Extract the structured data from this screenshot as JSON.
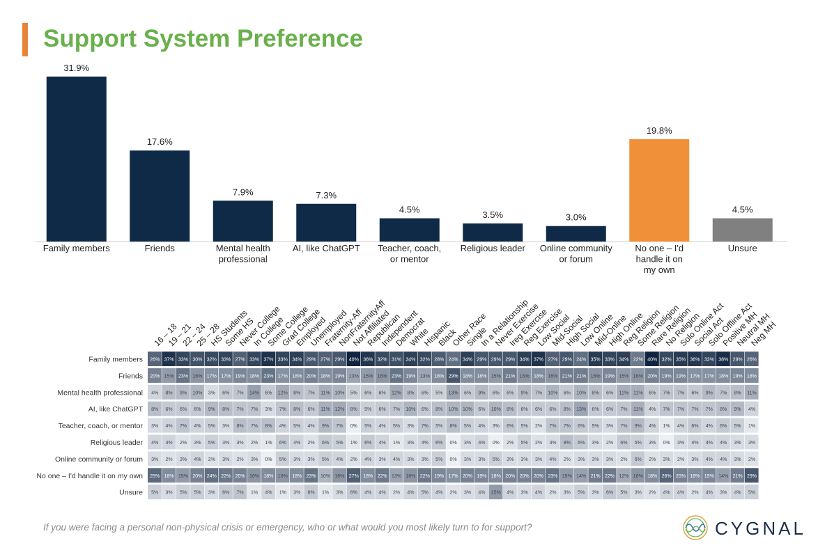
{
  "title": "Support System Preference",
  "question": "If you were facing a personal non-physical crisis or emergency, who or what would you most likely turn to for support?",
  "brand": "CYGNAL",
  "colors": {
    "accent": "#e8843a",
    "title": "#6ab04c",
    "bar": "#0f2a47",
    "highlight": "#f0913a",
    "unsure": "#808080"
  },
  "chart_data": [
    {
      "type": "bar",
      "categories": [
        "Family members",
        "Friends",
        "Mental health professional",
        "AI, like ChatGPT",
        "Teacher, coach, or mentor",
        "Religious leader",
        "Online community or forum",
        "No one – I'd handle it on my own",
        "Unsure"
      ],
      "values": [
        31.9,
        17.6,
        7.9,
        7.3,
        4.5,
        3.5,
        3.0,
        19.8,
        4.5
      ],
      "data_labels": [
        "31.9%",
        "17.6%",
        "7.9%",
        "7.3%",
        "4.5%",
        "3.5%",
        "3.0%",
        "19.8%",
        "4.5%"
      ],
      "bar_colors": [
        "#0f2a47",
        "#0f2a47",
        "#0f2a47",
        "#0f2a47",
        "#0f2a47",
        "#0f2a47",
        "#0f2a47",
        "#f0913a",
        "#808080"
      ],
      "ylim": [
        0,
        33
      ]
    },
    {
      "type": "heatmap",
      "columns": [
        "16 – 18",
        "19 – 21",
        "22 – 24",
        "25 – 28",
        "HS Students",
        "Some HS",
        "Never College",
        "In College",
        "Some College",
        "Grad College",
        "Employed",
        "Unemployed",
        "Fraternity-Aff",
        "NonFraternityAff",
        "Not Affiliated",
        "Republican",
        "Independent",
        "Democrat",
        "White",
        "Hispanic",
        "Black",
        "Other Race",
        "Single",
        "In a Relationship",
        "Never Exercise",
        "Ireg Exercise",
        "Reg Exercise",
        "Low Social",
        "Mid-Social",
        "High Social",
        "Low Online",
        "Mid-Online",
        "High Online",
        "Reg Religion",
        "Some Religion",
        "Rare Religion",
        "No Religion",
        "Solo Online Act",
        "Social Act",
        "Solo Offline Act",
        "Positive MH",
        "Neutral MH",
        "Neg MH"
      ],
      "rows": [
        "Family members",
        "Friends",
        "Mental health professional",
        "AI, like ChatGPT",
        "Teacher, coach, or mentor",
        "Religious leader",
        "Online community or forum",
        "No one – I'd handle it on my own",
        "Unsure"
      ],
      "values": [
        [
          26,
          37,
          33,
          30,
          32,
          33,
          27,
          33,
          37,
          33,
          34,
          29,
          27,
          29,
          40,
          36,
          32,
          31,
          34,
          32,
          28,
          24,
          34,
          29,
          29,
          29,
          34,
          37,
          27,
          29,
          24,
          35,
          33,
          34,
          22,
          40,
          32,
          35,
          36,
          33,
          38,
          29,
          26
        ],
        [
          20,
          15,
          23,
          16,
          17,
          17,
          19,
          18,
          23,
          17,
          18,
          20,
          18,
          19,
          13,
          15,
          16,
          23,
          19,
          13,
          18,
          29,
          18,
          18,
          15,
          21,
          16,
          18,
          16,
          21,
          21,
          16,
          19,
          15,
          16,
          20,
          19,
          19,
          17,
          17,
          18,
          19,
          18
        ],
        [
          4,
          8,
          9,
          10,
          3,
          6,
          7,
          14,
          6,
          12,
          8,
          7,
          11,
          10,
          5,
          6,
          6,
          12,
          8,
          6,
          5,
          13,
          6,
          9,
          6,
          6,
          9,
          7,
          10,
          6,
          10,
          8,
          6,
          11,
          11,
          6,
          7,
          7,
          6,
          9,
          7,
          8,
          11
        ],
        [
          8,
          6,
          6,
          6,
          9,
          8,
          7,
          7,
          3,
          7,
          8,
          6,
          11,
          12,
          8,
          5,
          6,
          7,
          10,
          6,
          8,
          10,
          10,
          6,
          10,
          8,
          6,
          6,
          6,
          8,
          13,
          6,
          6,
          7,
          11,
          4,
          7,
          7,
          7,
          7,
          8,
          9,
          4
        ],
        [
          3,
          4,
          7,
          4,
          5,
          3,
          8,
          7,
          8,
          4,
          5,
          4,
          9,
          7,
          0,
          5,
          4,
          5,
          3,
          7,
          5,
          8,
          5,
          4,
          3,
          6,
          5,
          2,
          7,
          7,
          6,
          5,
          3,
          7,
          9,
          4,
          1,
          4,
          6,
          4,
          6,
          5,
          1
        ],
        [
          4,
          4,
          2,
          3,
          5,
          3,
          3,
          2,
          1,
          6,
          4,
          2,
          6,
          5,
          1,
          6,
          4,
          1,
          3,
          4,
          6,
          0,
          3,
          4,
          0,
          2,
          5,
          2,
          3,
          8,
          6,
          3,
          2,
          6,
          5,
          3,
          0,
          3,
          4,
          4,
          4,
          3,
          3
        ],
        [
          3,
          2,
          3,
          4,
          2,
          3,
          2,
          3,
          0,
          5,
          3,
          3,
          5,
          4,
          2,
          4,
          3,
          4,
          3,
          3,
          5,
          0,
          3,
          3,
          5,
          3,
          3,
          3,
          4,
          2,
          3,
          3,
          3,
          2,
          6,
          2,
          3,
          2,
          3,
          4,
          4,
          3,
          2
        ],
        [
          25,
          18,
          15,
          20,
          24,
          22,
          20,
          16,
          18,
          16,
          18,
          23,
          10,
          16,
          27,
          18,
          22,
          13,
          16,
          22,
          19,
          17,
          20,
          19,
          18,
          20,
          20,
          20,
          23,
          15,
          14,
          21,
          22,
          12,
          16,
          18,
          26,
          20,
          18,
          19,
          14,
          21,
          29
        ],
        [
          5,
          3,
          5,
          5,
          3,
          6,
          7,
          1,
          4,
          1,
          3,
          6,
          1,
          3,
          6,
          4,
          4,
          2,
          4,
          5,
          4,
          2,
          3,
          4,
          15,
          4,
          3,
          4,
          2,
          3,
          5,
          3,
          6,
          5,
          3,
          2,
          4,
          4,
          2,
          4,
          3,
          4,
          5
        ]
      ],
      "value_suffix": "%"
    }
  ]
}
